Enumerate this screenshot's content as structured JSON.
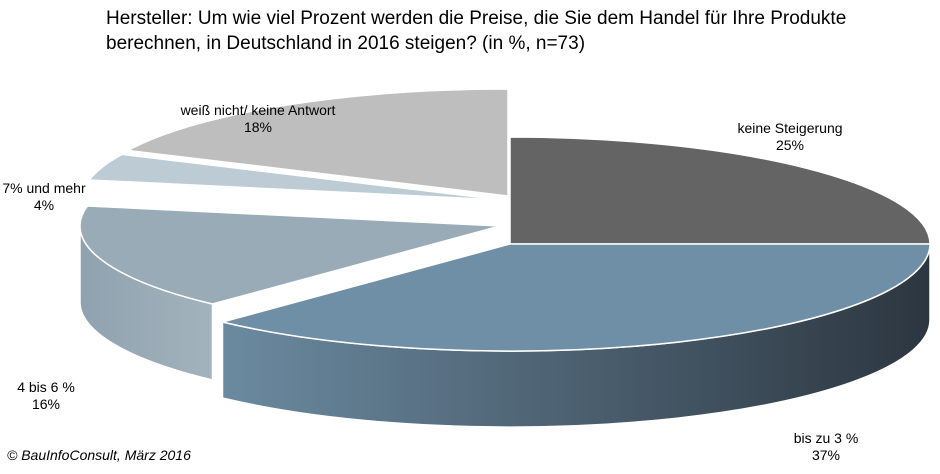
{
  "chart_data": {
    "type": "pie",
    "title": "Hersteller: Um wie viel Prozent werden die Preise, die Sie dem Handel für Ihre Produkte berechnen, in Deutschland in 2016 steigen? (in %, n=73)",
    "categories": [
      "keine Steigerung",
      "bis zu 3 %",
      "4 bis 6 %",
      "7% und mehr",
      "weiß nicht/ keine Antwort"
    ],
    "values": [
      25,
      37,
      16,
      4,
      18
    ],
    "value_labels": [
      "25%",
      "37%",
      "16%",
      "4%",
      "18%"
    ],
    "colors": [
      "#646464",
      "#6f8fa6",
      "#99abb6",
      "#bccbd4",
      "#bebebe"
    ],
    "style": "3d-exploded"
  },
  "footer": "© BauInfoConsult, März 2016"
}
